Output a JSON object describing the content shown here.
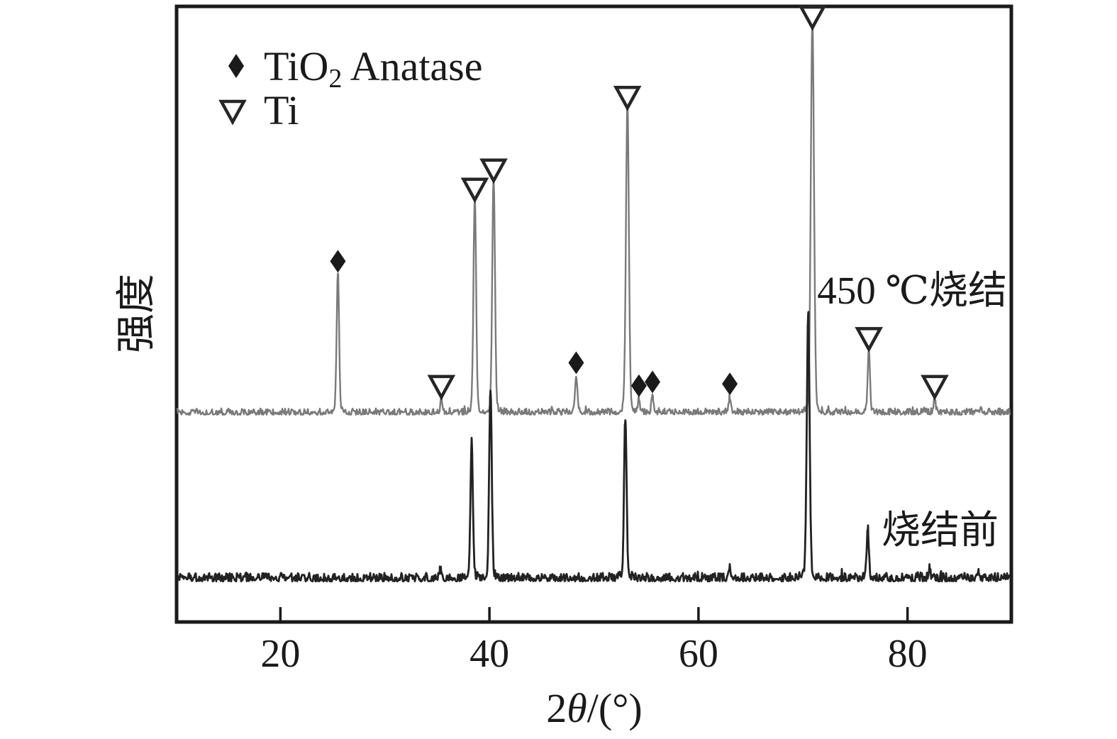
{
  "figure": {
    "background_color": "#ffffff",
    "axis_color": "#1a1a1a",
    "ylabel": "强度",
    "xlabel": "2θ/(°)",
    "xlabel_parts": {
      "num": "2",
      "symbol": "θ",
      "unit": "/(°)"
    }
  },
  "chart_data": {
    "type": "line",
    "subtype": "xrd-diffraction-pattern",
    "title": "",
    "xlabel": "2θ/(°)",
    "ylabel": "强度",
    "xlim": [
      10,
      90
    ],
    "x_ticks": [
      20,
      40,
      60,
      80
    ],
    "grid": false,
    "intensity_units": "arbitrary units, 100 = strongest peak of figure",
    "legend": {
      "position": "top-left",
      "entries": [
        {
          "symbol": "filled-diamond",
          "formula": "TiO",
          "formula_subscript": "2",
          "suffix": " Anatase",
          "phase": "TiO2 Anatase"
        },
        {
          "symbol": "open-inverted-triangle",
          "label": "Ti",
          "phase": "Ti"
        }
      ]
    },
    "series": [
      {
        "name": "450 ℃烧结",
        "color": "#7a7a7a",
        "line_width": 2.4,
        "baseline_frac": 0.663,
        "noise_amplitude": 4.5,
        "peaks": [
          {
            "two_theta": 25.5,
            "intensity": 36,
            "phase": "TiO2 Anatase",
            "marker": "diamond"
          },
          {
            "two_theta": 35.4,
            "intensity": 3.5,
            "phase": "Ti",
            "marker": "triangle"
          },
          {
            "two_theta": 38.6,
            "intensity": 55,
            "phase": "Ti",
            "marker": "triangle"
          },
          {
            "two_theta": 40.4,
            "intensity": 60,
            "phase": "Ti",
            "marker": "triangle"
          },
          {
            "two_theta": 48.3,
            "intensity": 9.5,
            "phase": "TiO2 Anatase",
            "marker": "diamond"
          },
          {
            "two_theta": 53.2,
            "intensity": 79,
            "phase": "Ti",
            "marker": "triangle"
          },
          {
            "two_theta": 54.3,
            "intensity": 3.5,
            "phase": "TiO2 Anatase",
            "marker": "diamond"
          },
          {
            "two_theta": 55.6,
            "intensity": 4.5,
            "phase": "TiO2 Anatase",
            "marker": "diamond"
          },
          {
            "two_theta": 63.0,
            "intensity": 4,
            "phase": "TiO2 Anatase",
            "marker": "diamond"
          },
          {
            "two_theta": 70.9,
            "intensity": 100,
            "phase": "Ti",
            "marker": "triangle"
          },
          {
            "two_theta": 76.3,
            "intensity": 16,
            "phase": "Ti",
            "marker": "triangle"
          },
          {
            "two_theta": 82.6,
            "intensity": 3.5,
            "phase": "Ti",
            "marker": "triangle"
          },
          {
            "two_theta": 87.0,
            "intensity": 1.5,
            "phase": null,
            "marker": null
          }
        ]
      },
      {
        "name": "烧结前",
        "color": "#222222",
        "line_width": 2.8,
        "baseline_frac": 0.933,
        "noise_amplitude": 6,
        "peaks": [
          {
            "two_theta": 35.3,
            "intensity": 2,
            "phase": "Ti",
            "marker": null
          },
          {
            "two_theta": 38.3,
            "intensity": 35,
            "phase": "Ti",
            "marker": null
          },
          {
            "two_theta": 40.1,
            "intensity": 48,
            "phase": "Ti",
            "marker": null
          },
          {
            "two_theta": 53.0,
            "intensity": 41,
            "phase": "Ti",
            "marker": null
          },
          {
            "two_theta": 63.0,
            "intensity": 3,
            "phase": "Ti",
            "marker": null
          },
          {
            "two_theta": 70.5,
            "intensity": 68,
            "phase": "Ti",
            "marker": null
          },
          {
            "two_theta": 76.2,
            "intensity": 13,
            "phase": "Ti",
            "marker": null
          },
          {
            "two_theta": 82.1,
            "intensity": 2.5,
            "phase": "Ti",
            "marker": null
          },
          {
            "two_theta": 86.8,
            "intensity": 2,
            "phase": null,
            "marker": null
          }
        ]
      }
    ],
    "annotations": [
      {
        "text": "450 ℃烧结",
        "attached_to_series": 0
      },
      {
        "text": "烧结前",
        "attached_to_series": 1
      }
    ]
  }
}
